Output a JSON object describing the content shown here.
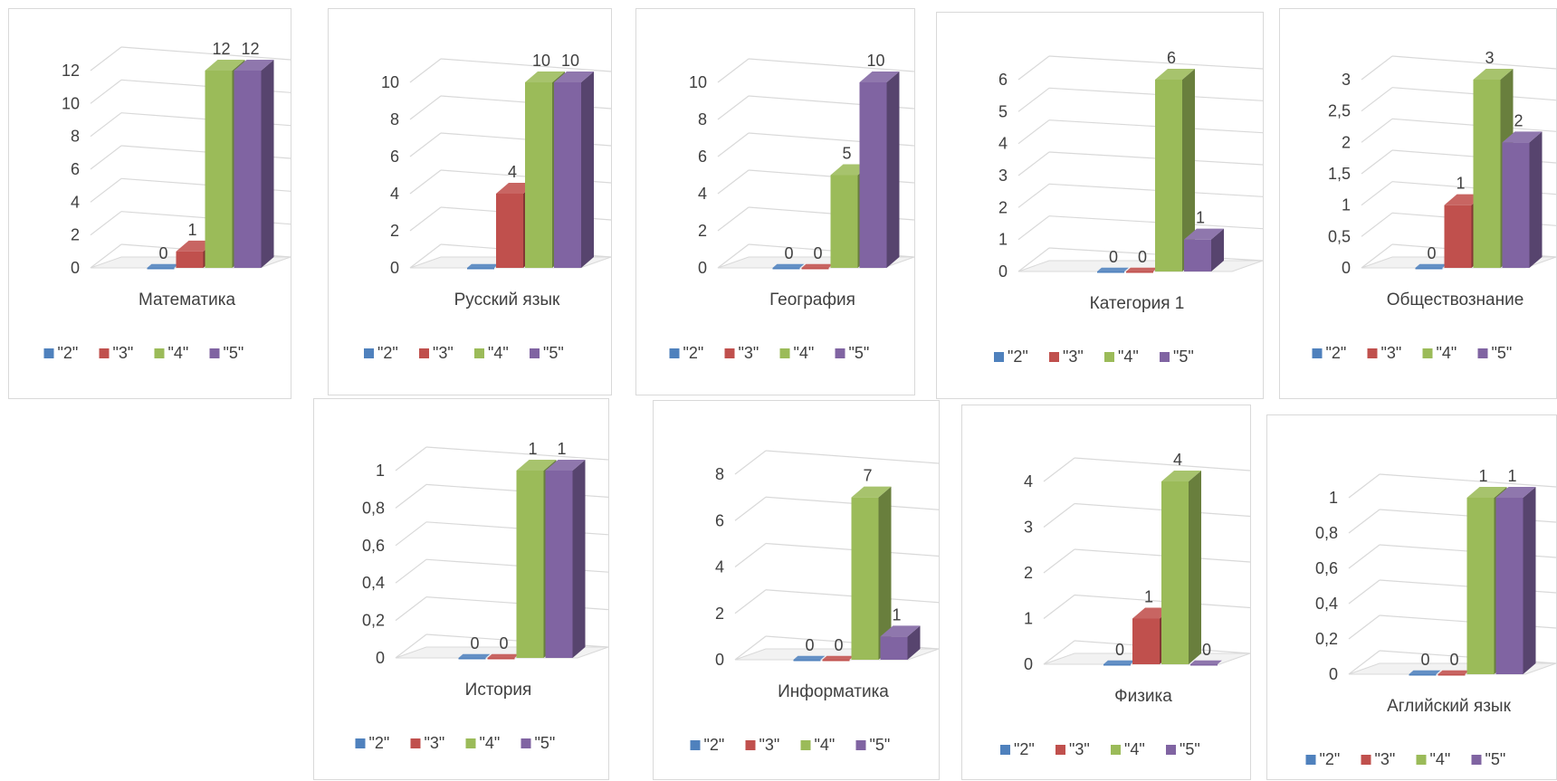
{
  "colors": {
    "2": "#4f81bd",
    "3": "#c0504d",
    "4": "#9bbb59",
    "5": "#8064a2"
  },
  "legend": [
    "\"2\"",
    "\"3\"",
    "\"4\"",
    "\"5\""
  ],
  "chart_data": [
    {
      "type": "bar",
      "title": "Математика",
      "categories": [
        "\"2\"",
        "\"3\"",
        "\"4\"",
        "\"5\""
      ],
      "values": [
        0,
        1,
        12,
        12
      ],
      "yticks": [
        "0",
        "2",
        "4",
        "6",
        "8",
        "10",
        "12"
      ],
      "ylim": [
        0,
        12
      ],
      "legend_position": "bottom"
    },
    {
      "type": "bar",
      "title": "Русский язык",
      "categories": [
        "\"2\"",
        "\"3\"",
        "\"4\"",
        "\"5\""
      ],
      "values": [
        0,
        4,
        10,
        10
      ],
      "value_labels": [
        "",
        "4",
        "10",
        "10"
      ],
      "yticks": [
        "0",
        "2",
        "4",
        "6",
        "8",
        "10"
      ],
      "ylim": [
        0,
        10
      ],
      "legend_position": "bottom"
    },
    {
      "type": "bar",
      "title": "География",
      "categories": [
        "\"2\"",
        "\"3\"",
        "\"4\"",
        "\"5\""
      ],
      "values": [
        0,
        0,
        5,
        10
      ],
      "yticks": [
        "0",
        "2",
        "4",
        "6",
        "8",
        "10"
      ],
      "ylim": [
        0,
        10
      ],
      "legend_position": "bottom"
    },
    {
      "type": "bar",
      "title": "Категория 1",
      "categories": [
        "\"2\"",
        "\"3\"",
        "\"4\"",
        "\"5\""
      ],
      "values": [
        0,
        0,
        6,
        1
      ],
      "yticks": [
        "0",
        "1",
        "2",
        "3",
        "4",
        "5",
        "6"
      ],
      "ylim": [
        0,
        6
      ],
      "legend_position": "bottom"
    },
    {
      "type": "bar",
      "title": "Обществознание",
      "categories": [
        "\"2\"",
        "\"3\"",
        "\"4\"",
        "\"5\""
      ],
      "values": [
        0,
        1,
        3,
        2
      ],
      "yticks": [
        "0",
        "0,5",
        "1",
        "1,5",
        "2",
        "2,5",
        "3"
      ],
      "ylim": [
        0,
        3
      ],
      "legend_position": "bottom"
    },
    {
      "type": "bar",
      "title": "История",
      "categories": [
        "\"2\"",
        "\"3\"",
        "\"4\"",
        "\"5\""
      ],
      "values": [
        0,
        0,
        1,
        1
      ],
      "yticks": [
        "0",
        "0,2",
        "0,4",
        "0,6",
        "0,8",
        "1"
      ],
      "ylim": [
        0,
        1
      ],
      "legend_position": "bottom"
    },
    {
      "type": "bar",
      "title": "Информатика",
      "categories": [
        "\"2\"",
        "\"3\"",
        "\"4\"",
        "\"5\""
      ],
      "values": [
        0,
        0,
        7,
        1
      ],
      "yticks": [
        "0",
        "2",
        "4",
        "6",
        "8"
      ],
      "ylim": [
        0,
        8
      ],
      "legend_position": "bottom"
    },
    {
      "type": "bar",
      "title": "Физика",
      "categories": [
        "\"2\"",
        "\"3\"",
        "\"4\"",
        "\"5\""
      ],
      "values": [
        0,
        1,
        4,
        0
      ],
      "yticks": [
        "0",
        "1",
        "2",
        "3",
        "4"
      ],
      "ylim": [
        0,
        4
      ],
      "legend_position": "bottom"
    },
    {
      "type": "bar",
      "title": "Аглийский язык",
      "categories": [
        "\"2\"",
        "\"3\"",
        "\"4\"",
        "\"5\""
      ],
      "values": [
        0,
        0,
        1,
        1
      ],
      "yticks": [
        "0",
        "0,2",
        "0,4",
        "0,6",
        "0,8",
        "1"
      ],
      "ylim": [
        0,
        1
      ],
      "legend_position": "bottom"
    }
  ]
}
